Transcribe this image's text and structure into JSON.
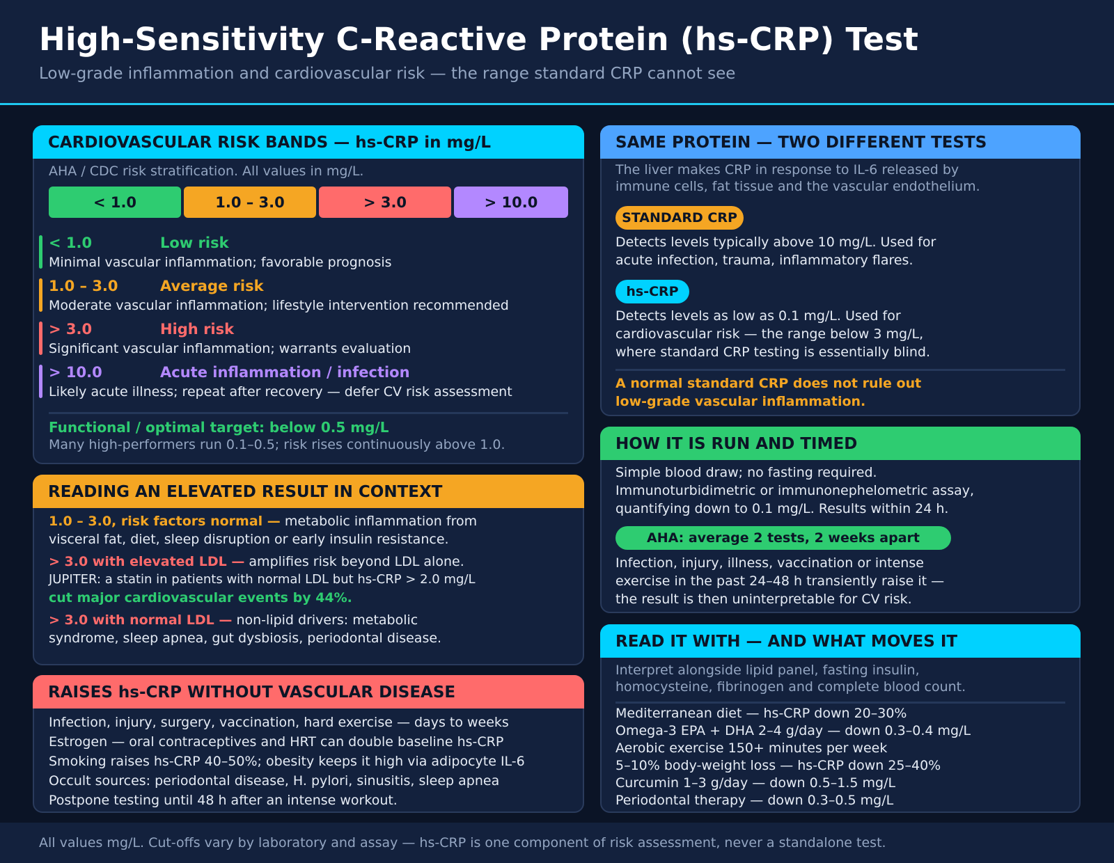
{
  "header": {
    "title": "High-Sensitivity C-Reactive Protein (hs-CRP) Test",
    "subtitle": "Low-grade inflammation and cardiovascular risk — the range standard CRP cannot see"
  },
  "colors": {
    "green": "#2ecc71",
    "amber": "#f5a623",
    "red": "#ff6b6b",
    "purple": "#b388ff",
    "cyan": "#00d2ff",
    "blue": "#4da3ff"
  },
  "risk_card": {
    "title": "CARDIOVASCULAR RISK BANDS — hs-CRP in mg/L",
    "intro": "AHA / CDC risk stratification. All values in mg/L.",
    "bands": [
      "< 1.0",
      "1.0 – 3.0",
      "> 3.0",
      "> 10.0"
    ],
    "rows": [
      {
        "value": "< 1.0",
        "name": "Low risk",
        "desc": "Minimal vascular inflammation; favorable prognosis"
      },
      {
        "value": "1.0 – 3.0",
        "name": "Average risk",
        "desc": "Moderate vascular inflammation; lifestyle intervention recommended"
      },
      {
        "value": "> 3.0",
        "name": "High risk",
        "desc": "Significant vascular inflammation; warrants evaluation"
      },
      {
        "value": "> 10.0",
        "name": "Acute inflammation / infection",
        "desc": "Likely acute illness; repeat after recovery — defer CV risk assessment"
      }
    ],
    "target": "Functional / optimal target: below 0.5 mg/L",
    "target_note": "Many high-performers run 0.1–0.5; risk rises continuously above 1.0."
  },
  "context_card": {
    "title": "READING AN ELEVATED RESULT IN CONTEXT",
    "p1_lead": "1.0 – 3.0, risk factors normal —",
    "p1_rest": " metabolic inflammation from",
    "p1_line2": "visceral fat, diet, sleep disruption or early insulin resistance.",
    "p2_lead": "> 3.0 with elevated LDL —",
    "p2_rest": " amplifies risk beyond LDL alone.",
    "p2_line2": "JUPITER: a statin in patients with normal LDL but hs-CRP > 2.0 mg/L",
    "p2_line3": "cut major cardiovascular events by 44%.",
    "p3_lead": "> 3.0 with normal LDL —",
    "p3_rest": " non-lipid drivers: metabolic",
    "p3_line2": "syndrome, sleep apnea, gut dysbiosis, periodontal disease."
  },
  "raises_card": {
    "title": "RAISES hs-CRP WITHOUT VASCULAR DISEASE",
    "lines": [
      "Infection, injury, surgery, vaccination, hard exercise — days to weeks",
      "Estrogen — oral contraceptives and HRT can double baseline hs-CRP",
      "Smoking raises hs-CRP 40–50%; obesity keeps it high via adipocyte IL-6",
      "Occult sources: periodontal disease, H. pylori, sinusitis, sleep apnea",
      "Postpone testing until 48 h after an intense workout."
    ]
  },
  "protein_card": {
    "title": "SAME PROTEIN — TWO DIFFERENT TESTS",
    "intro1": "The liver makes CRP in response to IL-6 released by",
    "intro2": "immune cells, fat tissue and the vascular endothelium.",
    "std_label": "STANDARD CRP",
    "std_line1": "Detects levels typically above 10 mg/L. Used for",
    "std_line2": "acute infection, trauma, inflammatory flares.",
    "hs_label": "hs-CRP",
    "hs_line1": "Detects levels as low as 0.1 mg/L. Used for",
    "hs_line2": "cardiovascular risk — the range below 3 mg/L,",
    "hs_line3": "where standard CRP testing is essentially blind.",
    "warning1": "A normal standard CRP does not rule out",
    "warning2": "low-grade vascular inflammation."
  },
  "timing_card": {
    "title": "HOW IT IS RUN AND TIMED",
    "line1": "Simple blood draw; no fasting required.",
    "line2": "Immunoturbidimetric or immunonephelometric assay,",
    "line3": "quantifying down to 0.1 mg/L. Results within 24 h.",
    "pill": "AHA: average 2 tests, 2 weeks apart",
    "note1": "Infection, injury, illness, vaccination or intense",
    "note2": "exercise in the past 24–48 h transiently raise it —",
    "note3": "the result is then uninterpretable for CV risk."
  },
  "moves_card": {
    "title": "READ IT WITH — AND WHAT MOVES IT",
    "intro1": "Interpret alongside lipid panel, fasting insulin,",
    "intro2": "homocysteine, fibrinogen and complete blood count.",
    "lines": [
      "Mediterranean diet — hs-CRP down 20–30%",
      "Omega-3 EPA + DHA 2–4 g/day — down 0.3–0.4 mg/L",
      "Aerobic exercise 150+ minutes per week",
      "5–10% body-weight loss — hs-CRP down 25–40%",
      "Curcumin 1–3 g/day — down 0.5–1.5 mg/L",
      "Periodontal therapy — down 0.3–0.5 mg/L"
    ]
  },
  "footer": "All values mg/L. Cut-offs vary by laboratory and assay — hs-CRP is one component of risk assessment, never a standalone test."
}
